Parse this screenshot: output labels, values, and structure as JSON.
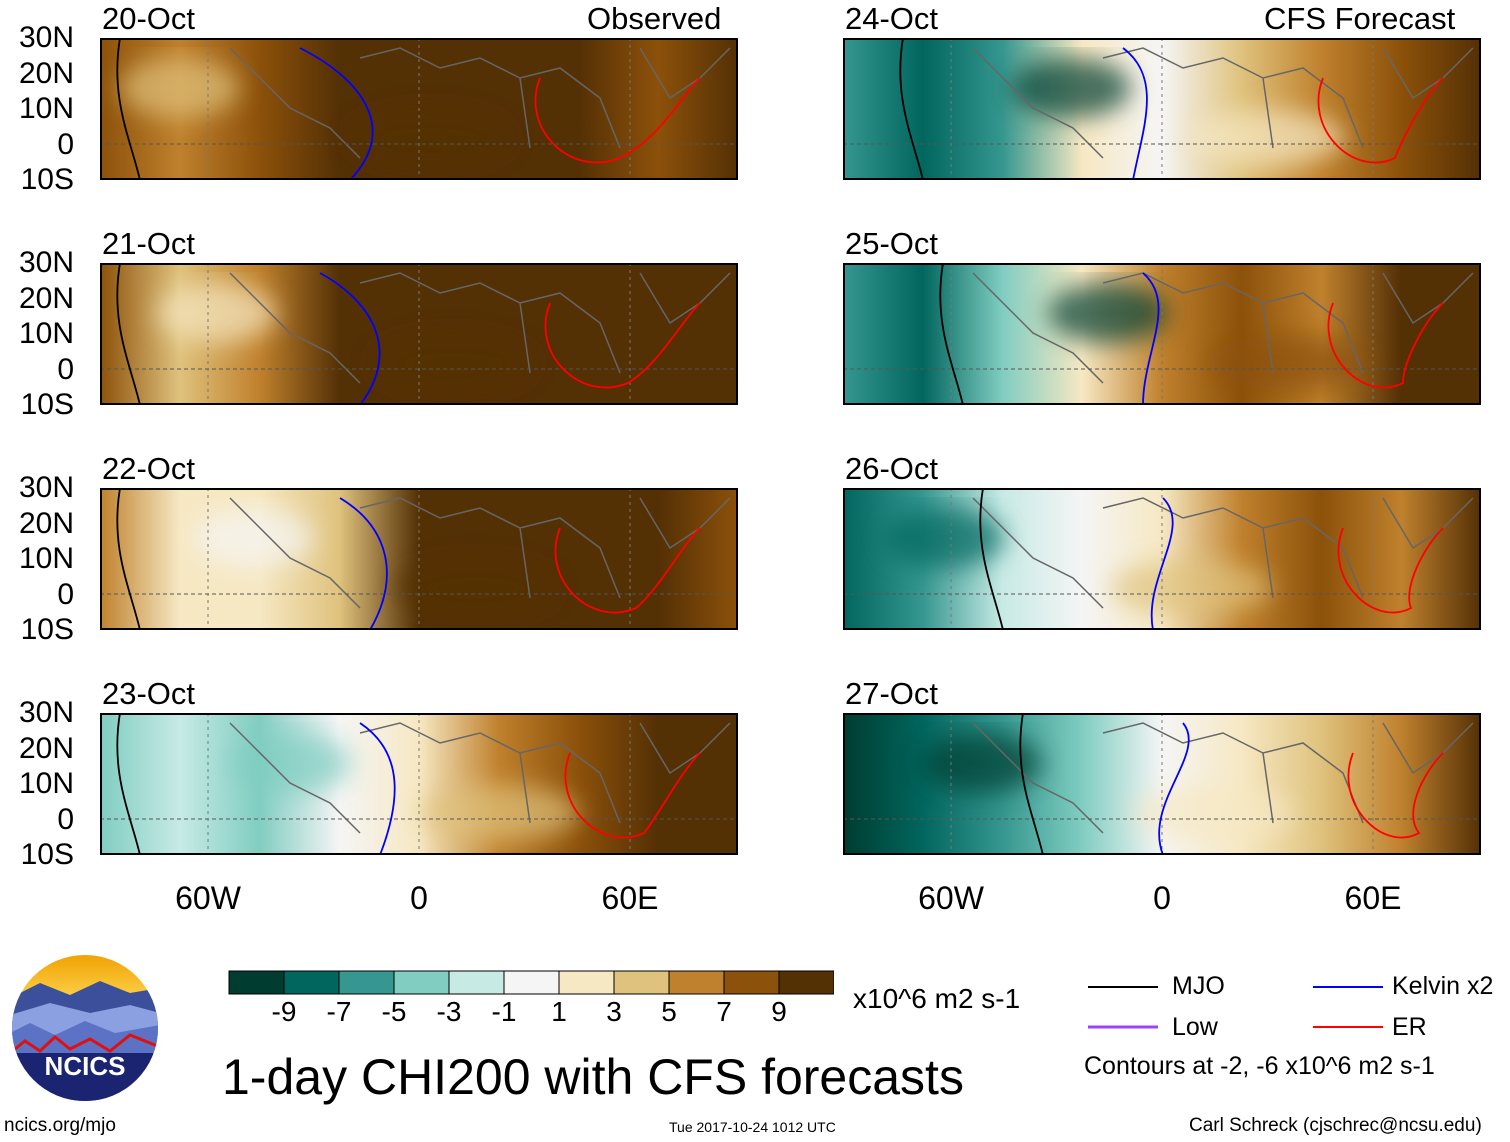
{
  "header": {
    "left_label": "Observed",
    "right_label": "CFS Forecast"
  },
  "panels": [
    {
      "date": "20-Oct",
      "column": "observed"
    },
    {
      "date": "21-Oct",
      "column": "observed"
    },
    {
      "date": "22-Oct",
      "column": "observed"
    },
    {
      "date": "23-Oct",
      "column": "observed"
    },
    {
      "date": "24-Oct",
      "column": "forecast"
    },
    {
      "date": "25-Oct",
      "column": "forecast"
    },
    {
      "date": "26-Oct",
      "column": "forecast"
    },
    {
      "date": "27-Oct",
      "column": "forecast"
    }
  ],
  "lat_labels": [
    "30N",
    "20N",
    "10N",
    "0",
    "10S"
  ],
  "lon_labels": [
    "60W",
    "0",
    "60E"
  ],
  "colorbar": {
    "colors": [
      "#003c30",
      "#01665e",
      "#35978f",
      "#80cdc1",
      "#c7eae5",
      "#f5f5f5",
      "#f6e8c3",
      "#dfc27d",
      "#bf812d",
      "#8c510a",
      "#543005"
    ],
    "labels": [
      "-9",
      "-7",
      "-5",
      "-3",
      "-1",
      "1",
      "3",
      "5",
      "7",
      "9"
    ],
    "units": "x10^6 m2 s-1"
  },
  "title": "1-day CHI200 with CFS forecasts",
  "legend": {
    "items": [
      {
        "label": "MJO",
        "color": "#000000"
      },
      {
        "label": "Kelvin x2",
        "color": "#0000ff"
      },
      {
        "label": "Low",
        "color": "#a040ff"
      },
      {
        "label": "ER",
        "color": "#ff0000"
      }
    ],
    "contours_note": "Contours at -2, -6 x10^6 m2 s-1"
  },
  "logo": {
    "text": "NCICS"
  },
  "footer": {
    "url": "ncics.org/mjo",
    "timestamp": "Tue 2017-10-24 1012 UTC",
    "credit": "Carl Schreck (cjschrec@ncsu.edu)"
  }
}
